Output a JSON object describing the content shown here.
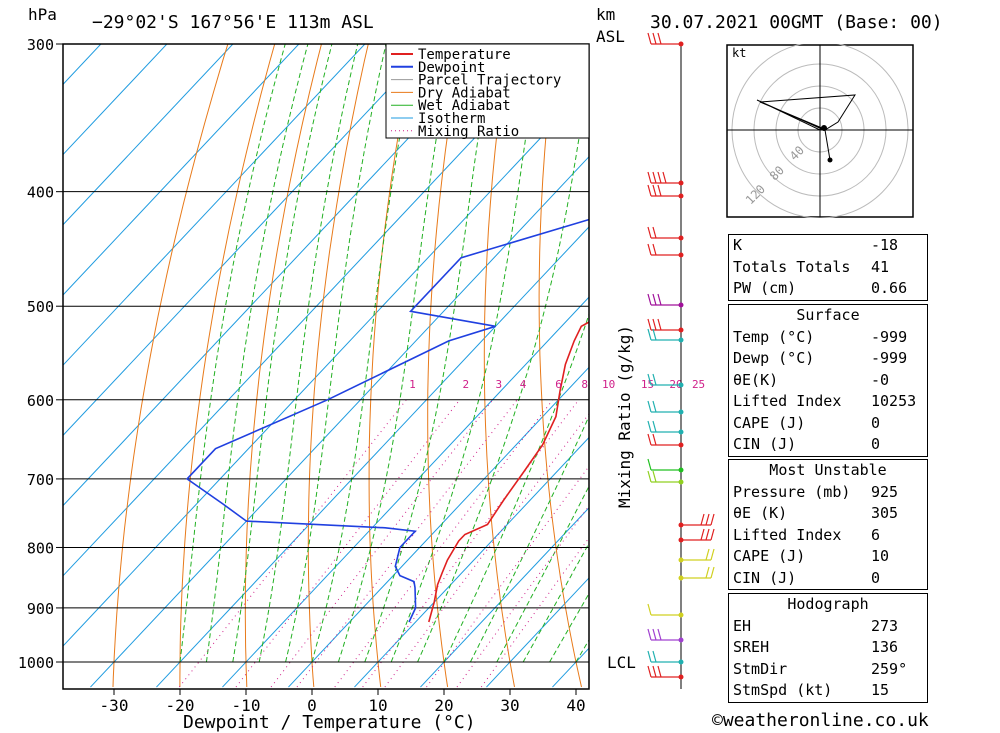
{
  "header": {
    "pressure_unit": "hPa",
    "location": "−29°02'S  167°56'E  113m  ASL",
    "height_unit_km": "km",
    "height_unit_asl": "ASL",
    "date": "30.07.2021  00GMT  (Base: 00)"
  },
  "chart_data": {
    "type": "line",
    "xlabel": "Dewpoint / Temperature (°C)",
    "ylabel_right": "Mixing Ratio (g/kg)",
    "x_ticks": [
      -30,
      -20,
      -10,
      0,
      10,
      20,
      30,
      40
    ],
    "pressure_levels": [
      300,
      400,
      500,
      600,
      700,
      800,
      900,
      1000
    ],
    "mixing_ratio_labels": [
      "1",
      "2",
      "3",
      "4",
      "6",
      "8",
      "10",
      "15",
      "20",
      "25"
    ],
    "lcl_label": "LCL",
    "legend": [
      "Temperature",
      "Dewpoint",
      "Parcel Trajectory",
      "Dry Adiabat",
      "Wet Adiabat",
      "Isotherm",
      "Mixing Ratio"
    ],
    "series": [
      {
        "name": "Temperature",
        "color": "#e02020",
        "points": [
          [
            12,
            925
          ],
          [
            10,
            890
          ],
          [
            8,
            860
          ],
          [
            7,
            840
          ],
          [
            6,
            820
          ],
          [
            5,
            790
          ],
          [
            5,
            780
          ],
          [
            7,
            765
          ],
          [
            6,
            730
          ],
          [
            5,
            690
          ],
          [
            4,
            655
          ],
          [
            2,
            620
          ],
          [
            -1,
            590
          ],
          [
            -4,
            560
          ],
          [
            -6,
            535
          ],
          [
            -7,
            520
          ],
          [
            -5,
            505
          ],
          [
            -4,
            490
          ],
          [
            -4,
            460
          ],
          [
            -5,
            440
          ],
          [
            -9,
            400
          ],
          [
            -13,
            370
          ],
          [
            -18,
            340
          ],
          [
            -22,
            305
          ]
        ]
      },
      {
        "name": "Dewpoint",
        "color": "#2040e0",
        "points": [
          [
            9,
            925
          ],
          [
            8,
            900
          ],
          [
            5,
            865
          ],
          [
            4,
            855
          ],
          [
            1,
            845
          ],
          [
            -1,
            830
          ],
          [
            -3,
            800
          ],
          [
            -3,
            775
          ],
          [
            -8,
            770
          ],
          [
            -30,
            760
          ],
          [
            -36,
            735
          ],
          [
            -45,
            700
          ],
          [
            -45,
            660
          ],
          [
            -35,
            600
          ],
          [
            -25,
            535
          ],
          [
            -20,
            520
          ],
          [
            -35,
            505
          ],
          [
            -35,
            455
          ],
          [
            -20,
            420
          ],
          [
            -8,
            410
          ],
          [
            -14,
            380
          ],
          [
            -10,
            345
          ],
          [
            -14,
            330
          ],
          [
            -20,
            313
          ],
          [
            -30,
            300
          ]
        ]
      }
    ]
  },
  "wind_indicator": {
    "kt_label": "kt",
    "rings": [
      "40",
      "80",
      "120"
    ]
  },
  "indices": {
    "k_label": "K",
    "k": "-18",
    "tt_label": "Totals Totals",
    "tt": "41",
    "pw_label": "PW (cm)",
    "pw": "0.66"
  },
  "surface": {
    "title": "Surface",
    "temp_label": "Temp (°C)",
    "temp": "-999",
    "dewp_label": "Dewp (°C)",
    "dewp": "-999",
    "thetae_label": "θE(K)",
    "thetae": "-0",
    "li_label": "Lifted Index",
    "li": "10253",
    "cape_label": "CAPE (J)",
    "cape": "0",
    "cin_label": "CIN (J)",
    "cin": "0"
  },
  "most_unstable": {
    "title": "Most Unstable",
    "pressure_label": "Pressure (mb)",
    "pressure": "925",
    "thetae_label": "θE (K)",
    "thetae": "305",
    "li_label": "Lifted Index",
    "li": "6",
    "cape_label": "CAPE (J)",
    "cape": "10",
    "cin_label": "CIN (J)",
    "cin": "0"
  },
  "hodograph": {
    "title": "Hodograph",
    "eh_label": "EH",
    "eh": "273",
    "srh_label": "SREH",
    "srh": "136",
    "stmdir_label": "StmDir",
    "stmdir": "259°",
    "stmspd_label": "StmSpd (kt)",
    "stmspd": "15"
  },
  "copyright": "©weatheronline.co.uk"
}
